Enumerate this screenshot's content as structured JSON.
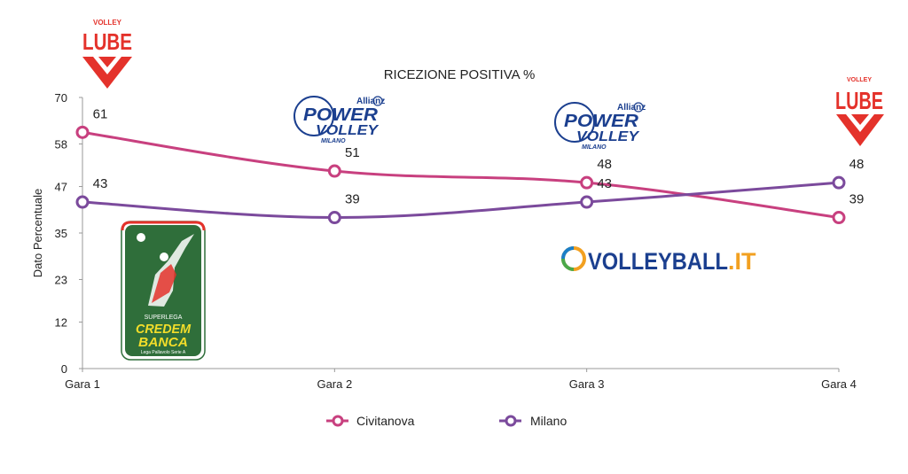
{
  "logos": {
    "lube_text": "LUBE",
    "lube_top": "VOLLEY",
    "powervolley_brand": "Allianz",
    "powervolley_line1": "POWER",
    "powervolley_line2": "VOLLEY",
    "powervolley_line3": "MILANO",
    "superlega_line1": "SUPERLEGA",
    "superlega_line2": "CREDEM",
    "superlega_line3": "BANCA",
    "superlega_line4": "Lega Pallavolo Serie A",
    "volleyball_it": "VOLLEYBALL",
    "volleyball_it_suffix": ".IT"
  },
  "colors": {
    "civitanova": "#c8407f",
    "milano": "#7b4a9c",
    "lube_red": "#e4322b",
    "milano_blue": "#1b3f8f",
    "superlega_green": "#2f6e3a",
    "superlega_yellow": "#f2dd2a"
  },
  "chart_data": {
    "type": "line",
    "title": "RICEZIONE POSITIVA %",
    "xlabel": "",
    "ylabel": "Dato Percentuale",
    "categories": [
      "Gara 1",
      "Gara 2",
      "Gara 3",
      "Gara 4"
    ],
    "yticks": [
      0,
      12,
      23,
      35,
      47,
      58,
      70
    ],
    "ylim": [
      0,
      70
    ],
    "grid": false,
    "legend_position": "bottom",
    "series": [
      {
        "name": "Civitanova",
        "values": [
          61,
          51,
          48,
          39
        ],
        "color": "#c8407f"
      },
      {
        "name": "Milano",
        "values": [
          43,
          39,
          43,
          48
        ],
        "color": "#7b4a9c"
      }
    ]
  }
}
